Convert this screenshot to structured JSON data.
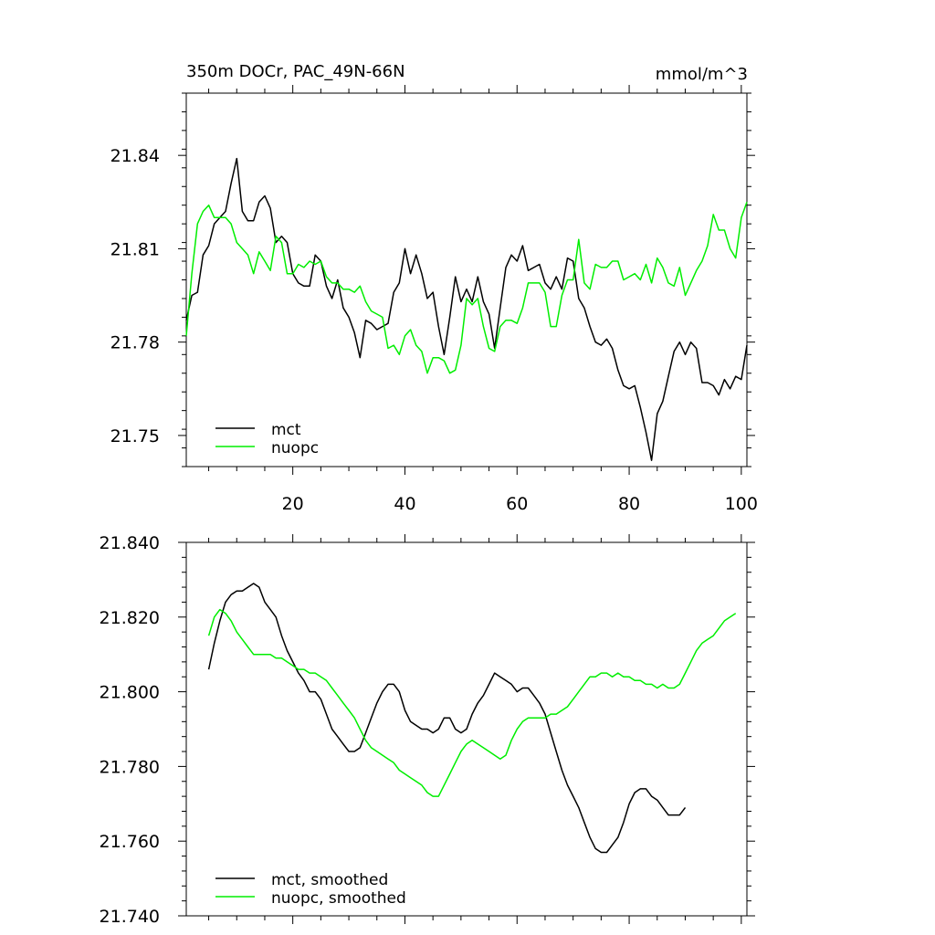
{
  "chart_data": [
    {
      "type": "line",
      "title_left": "350m DOCr, PAC_49N-66N",
      "title_right": "mmol/m^3",
      "xlim": [
        1,
        101
      ],
      "ylim": [
        21.74,
        21.86
      ],
      "x_ticks": [
        20,
        40,
        60,
        80,
        100
      ],
      "x_tick_labels": [
        "20",
        "40",
        "60",
        "80",
        "100"
      ],
      "y_ticks": [
        21.75,
        21.78,
        21.81,
        21.84
      ],
      "y_tick_labels": [
        "21.75",
        "21.78",
        "21.81",
        "21.84"
      ],
      "legend": [
        {
          "label": "mct",
          "color": "#000000"
        },
        {
          "label": "nuopc",
          "color": "#00ee00"
        }
      ],
      "series": [
        {
          "name": "mct",
          "color": "#000000",
          "x_start": 1,
          "values": [
            21.787,
            21.795,
            21.796,
            21.808,
            21.811,
            21.818,
            21.82,
            21.822,
            21.831,
            21.839,
            21.822,
            21.819,
            21.819,
            21.825,
            21.827,
            21.823,
            21.812,
            21.814,
            21.812,
            21.802,
            21.799,
            21.798,
            21.798,
            21.808,
            21.806,
            21.798,
            21.794,
            21.8,
            21.791,
            21.788,
            21.783,
            21.775,
            21.787,
            21.786,
            21.784,
            21.785,
            21.786,
            21.796,
            21.799,
            21.81,
            21.802,
            21.808,
            21.802,
            21.794,
            21.796,
            21.785,
            21.776,
            21.788,
            21.801,
            21.793,
            21.797,
            21.793,
            21.801,
            21.793,
            21.789,
            21.778,
            21.791,
            21.804,
            21.808,
            21.806,
            21.811,
            21.803,
            21.804,
            21.805,
            21.799,
            21.797,
            21.801,
            21.797,
            21.807,
            21.806,
            21.794,
            21.791,
            21.785,
            21.78,
            21.779,
            21.781,
            21.778,
            21.771,
            21.766,
            21.765,
            21.766,
            21.759,
            21.751,
            21.742,
            21.757,
            21.761,
            21.769,
            21.777,
            21.78,
            21.776,
            21.78,
            21.778,
            21.767,
            21.767,
            21.766,
            21.763,
            21.768,
            21.765,
            21.769,
            21.768,
            21.779
          ]
        },
        {
          "name": "nuopc",
          "color": "#00ee00",
          "x_start": 1,
          "values": [
            21.782,
            21.802,
            21.818,
            21.822,
            21.824,
            21.82,
            21.82,
            21.82,
            21.818,
            21.812,
            21.81,
            21.808,
            21.802,
            21.809,
            21.806,
            21.803,
            21.814,
            21.812,
            21.802,
            21.802,
            21.805,
            21.804,
            21.806,
            21.805,
            21.806,
            21.801,
            21.799,
            21.799,
            21.797,
            21.797,
            21.796,
            21.798,
            21.793,
            21.79,
            21.789,
            21.788,
            21.778,
            21.779,
            21.776,
            21.782,
            21.784,
            21.779,
            21.777,
            21.77,
            21.775,
            21.775,
            21.774,
            21.77,
            21.771,
            21.779,
            21.794,
            21.792,
            21.794,
            21.785,
            21.778,
            21.777,
            21.785,
            21.787,
            21.787,
            21.786,
            21.791,
            21.799,
            21.799,
            21.799,
            21.796,
            21.785,
            21.785,
            21.795,
            21.8,
            21.8,
            21.813,
            21.799,
            21.797,
            21.805,
            21.804,
            21.804,
            21.806,
            21.806,
            21.8,
            21.801,
            21.802,
            21.8,
            21.805,
            21.799,
            21.807,
            21.804,
            21.799,
            21.798,
            21.804,
            21.795,
            21.799,
            21.803,
            21.806,
            21.811,
            21.821,
            21.816,
            21.816,
            21.81,
            21.807,
            21.82,
            21.825
          ]
        }
      ]
    },
    {
      "type": "line",
      "xlim": [
        1,
        101
      ],
      "ylim": [
        21.74,
        21.84
      ],
      "x_ticks": [
        20,
        40,
        60,
        80,
        100
      ],
      "y_ticks": [
        21.74,
        21.76,
        21.78,
        21.8,
        21.82,
        21.84
      ],
      "y_tick_labels": [
        "21.740",
        "21.760",
        "21.780",
        "21.800",
        "21.820",
        "21.840"
      ],
      "legend": [
        {
          "label": "mct, smoothed",
          "color": "#000000"
        },
        {
          "label": "nuopc, smoothed",
          "color": "#00ee00"
        }
      ],
      "series": [
        {
          "name": "mct, smoothed",
          "color": "#000000",
          "x_start": 5,
          "values": [
            21.806,
            21.813,
            21.819,
            21.824,
            21.826,
            21.827,
            21.827,
            21.828,
            21.829,
            21.828,
            21.824,
            21.822,
            21.82,
            21.815,
            21.811,
            21.808,
            21.805,
            21.803,
            21.8,
            21.8,
            21.798,
            21.794,
            21.79,
            21.788,
            21.786,
            21.784,
            21.784,
            21.785,
            21.789,
            21.793,
            21.797,
            21.8,
            21.802,
            21.802,
            21.8,
            21.795,
            21.792,
            21.791,
            21.79,
            21.79,
            21.789,
            21.79,
            21.793,
            21.793,
            21.79,
            21.789,
            21.79,
            21.794,
            21.797,
            21.799,
            21.802,
            21.805,
            21.804,
            21.803,
            21.802,
            21.8,
            21.801,
            21.801,
            21.799,
            21.797,
            21.794,
            21.789,
            21.784,
            21.779,
            21.775,
            21.772,
            21.769,
            21.765,
            21.761,
            21.758,
            21.757,
            21.757,
            21.759,
            21.761,
            21.765,
            21.77,
            21.773,
            21.774,
            21.774,
            21.772,
            21.771,
            21.769,
            21.767,
            21.767,
            21.767,
            21.769
          ]
        },
        {
          "name": "nuopc, smoothed",
          "color": "#00ee00",
          "x_start": 5,
          "values": [
            21.815,
            21.82,
            21.822,
            21.821,
            21.819,
            21.816,
            21.814,
            21.812,
            21.81,
            21.81,
            21.81,
            21.81,
            21.809,
            21.809,
            21.808,
            21.807,
            21.806,
            21.806,
            21.805,
            21.805,
            21.804,
            21.803,
            21.801,
            21.799,
            21.797,
            21.795,
            21.793,
            21.79,
            21.787,
            21.785,
            21.784,
            21.783,
            21.782,
            21.781,
            21.779,
            21.778,
            21.777,
            21.776,
            21.775,
            21.773,
            21.772,
            21.772,
            21.775,
            21.778,
            21.781,
            21.784,
            21.786,
            21.787,
            21.786,
            21.785,
            21.784,
            21.783,
            21.782,
            21.783,
            21.787,
            21.79,
            21.792,
            21.793,
            21.793,
            21.793,
            21.793,
            21.794,
            21.794,
            21.795,
            21.796,
            21.798,
            21.8,
            21.802,
            21.804,
            21.804,
            21.805,
            21.805,
            21.804,
            21.805,
            21.804,
            21.804,
            21.803,
            21.803,
            21.802,
            21.802,
            21.801,
            21.802,
            21.801,
            21.801,
            21.802,
            21.805,
            21.808,
            21.811,
            21.813,
            21.814,
            21.815,
            21.817,
            21.819,
            21.82,
            21.821
          ]
        }
      ]
    }
  ]
}
